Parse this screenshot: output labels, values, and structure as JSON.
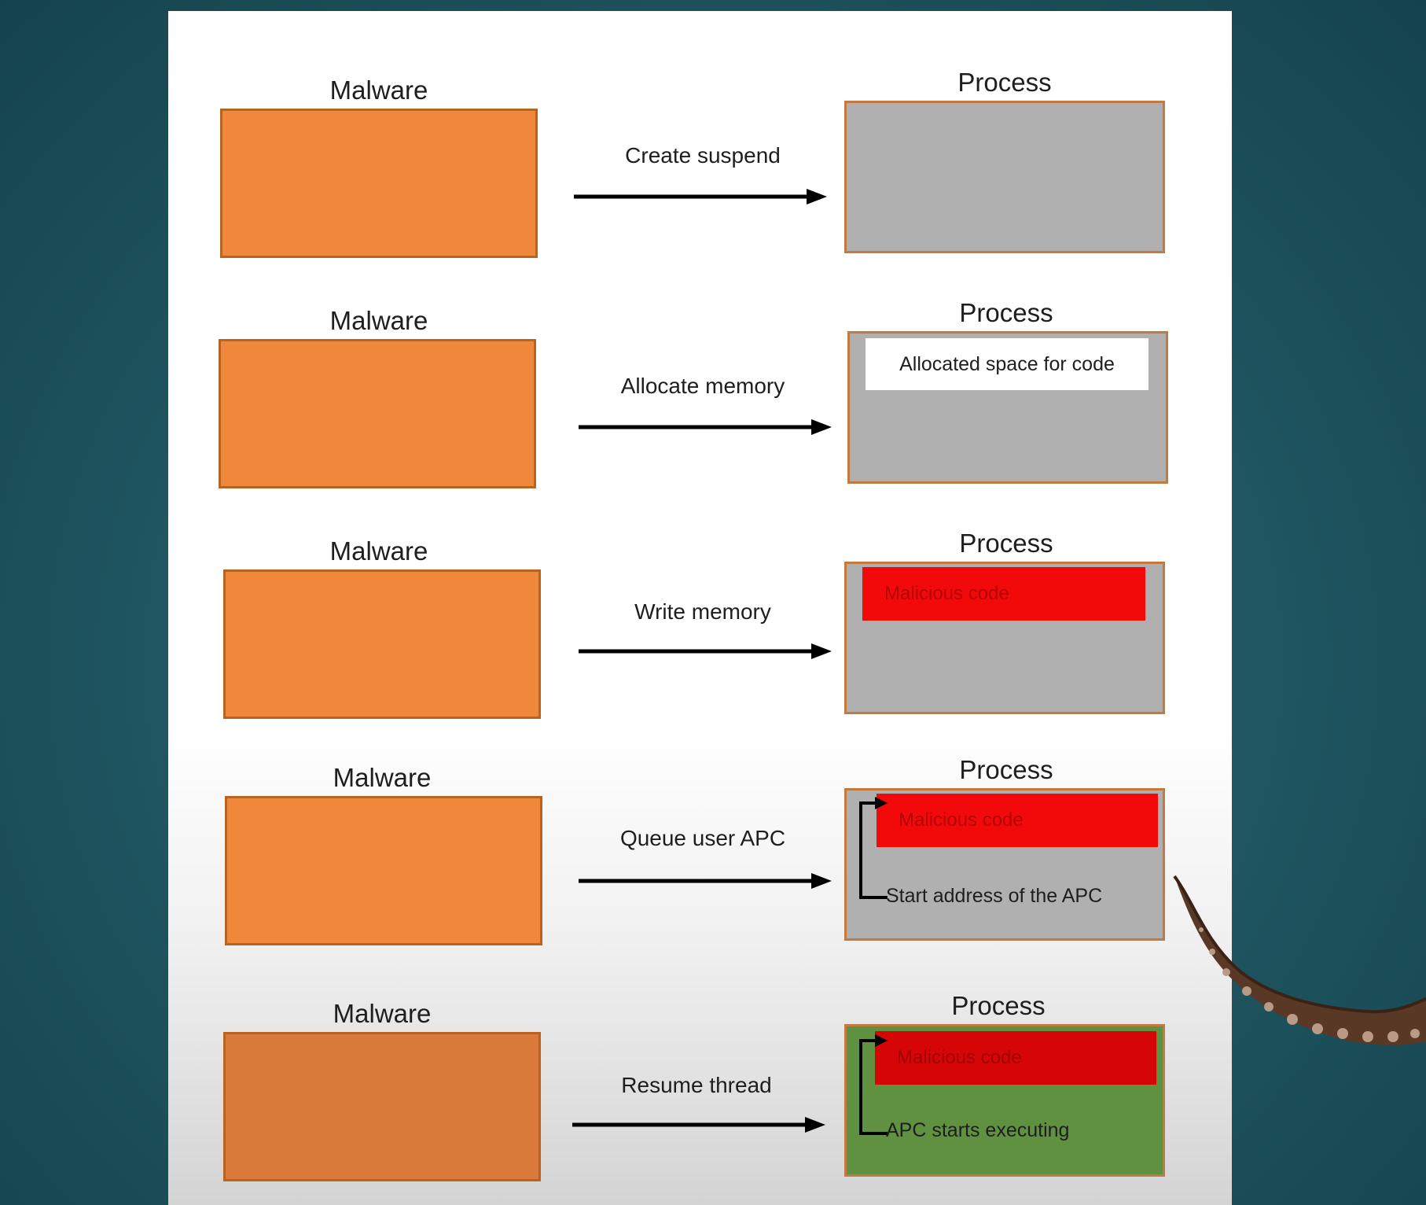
{
  "steps": [
    {
      "malware_label": "Malware",
      "action": "Create suspend",
      "process_label": "Process"
    },
    {
      "malware_label": "Malware",
      "action": "Allocate memory",
      "process_label": "Process",
      "inner_text": "Allocated space for code"
    },
    {
      "malware_label": "Malware",
      "action": "Write memory",
      "process_label": "Process",
      "inner_text": "Malicious code"
    },
    {
      "malware_label": "Malware",
      "action": "Queue user APC",
      "process_label": "Process",
      "inner_text": "Malicious code",
      "note": "Start address of the APC"
    },
    {
      "malware_label": "Malware",
      "action": "Resume thread",
      "process_label": "Process",
      "inner_text": "Malicious code",
      "note": "APC starts executing"
    }
  ],
  "colors": {
    "background": "#1f5661",
    "malware_box": "#ef883b",
    "process_box": "#b0b0b0",
    "process_box_executing": "#5f9141",
    "malicious_code": "#f20a0a",
    "allocated_space": "#ffffff"
  },
  "icons": {
    "decoration": "tentacle-icon"
  }
}
